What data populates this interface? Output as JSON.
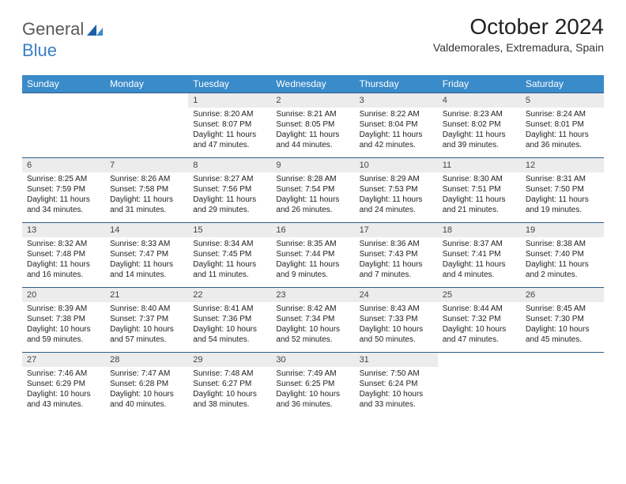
{
  "logo": {
    "word1": "General",
    "word2": "Blue"
  },
  "title": "October 2024",
  "subtitle": "Valdemorales, Extremadura, Spain",
  "colors": {
    "header_bg": "#3a8bc9",
    "header_text": "#ffffff",
    "row_divider": "#2e5c87",
    "daynum_bg": "#ececec",
    "logo_gray": "#5a5a5a",
    "logo_blue": "#3a7fc4",
    "text": "#222222",
    "page_bg": "#ffffff"
  },
  "weekdays": [
    "Sunday",
    "Monday",
    "Tuesday",
    "Wednesday",
    "Thursday",
    "Friday",
    "Saturday"
  ],
  "cells": [
    {
      "empty": true
    },
    {
      "empty": true
    },
    {
      "n": "1",
      "sr": "Sunrise: 8:20 AM",
      "ss": "Sunset: 8:07 PM",
      "d1": "Daylight: 11 hours",
      "d2": "and 47 minutes."
    },
    {
      "n": "2",
      "sr": "Sunrise: 8:21 AM",
      "ss": "Sunset: 8:05 PM",
      "d1": "Daylight: 11 hours",
      "d2": "and 44 minutes."
    },
    {
      "n": "3",
      "sr": "Sunrise: 8:22 AM",
      "ss": "Sunset: 8:04 PM",
      "d1": "Daylight: 11 hours",
      "d2": "and 42 minutes."
    },
    {
      "n": "4",
      "sr": "Sunrise: 8:23 AM",
      "ss": "Sunset: 8:02 PM",
      "d1": "Daylight: 11 hours",
      "d2": "and 39 minutes."
    },
    {
      "n": "5",
      "sr": "Sunrise: 8:24 AM",
      "ss": "Sunset: 8:01 PM",
      "d1": "Daylight: 11 hours",
      "d2": "and 36 minutes."
    },
    {
      "n": "6",
      "sr": "Sunrise: 8:25 AM",
      "ss": "Sunset: 7:59 PM",
      "d1": "Daylight: 11 hours",
      "d2": "and 34 minutes."
    },
    {
      "n": "7",
      "sr": "Sunrise: 8:26 AM",
      "ss": "Sunset: 7:58 PM",
      "d1": "Daylight: 11 hours",
      "d2": "and 31 minutes."
    },
    {
      "n": "8",
      "sr": "Sunrise: 8:27 AM",
      "ss": "Sunset: 7:56 PM",
      "d1": "Daylight: 11 hours",
      "d2": "and 29 minutes."
    },
    {
      "n": "9",
      "sr": "Sunrise: 8:28 AM",
      "ss": "Sunset: 7:54 PM",
      "d1": "Daylight: 11 hours",
      "d2": "and 26 minutes."
    },
    {
      "n": "10",
      "sr": "Sunrise: 8:29 AM",
      "ss": "Sunset: 7:53 PM",
      "d1": "Daylight: 11 hours",
      "d2": "and 24 minutes."
    },
    {
      "n": "11",
      "sr": "Sunrise: 8:30 AM",
      "ss": "Sunset: 7:51 PM",
      "d1": "Daylight: 11 hours",
      "d2": "and 21 minutes."
    },
    {
      "n": "12",
      "sr": "Sunrise: 8:31 AM",
      "ss": "Sunset: 7:50 PM",
      "d1": "Daylight: 11 hours",
      "d2": "and 19 minutes."
    },
    {
      "n": "13",
      "sr": "Sunrise: 8:32 AM",
      "ss": "Sunset: 7:48 PM",
      "d1": "Daylight: 11 hours",
      "d2": "and 16 minutes."
    },
    {
      "n": "14",
      "sr": "Sunrise: 8:33 AM",
      "ss": "Sunset: 7:47 PM",
      "d1": "Daylight: 11 hours",
      "d2": "and 14 minutes."
    },
    {
      "n": "15",
      "sr": "Sunrise: 8:34 AM",
      "ss": "Sunset: 7:45 PM",
      "d1": "Daylight: 11 hours",
      "d2": "and 11 minutes."
    },
    {
      "n": "16",
      "sr": "Sunrise: 8:35 AM",
      "ss": "Sunset: 7:44 PM",
      "d1": "Daylight: 11 hours",
      "d2": "and 9 minutes."
    },
    {
      "n": "17",
      "sr": "Sunrise: 8:36 AM",
      "ss": "Sunset: 7:43 PM",
      "d1": "Daylight: 11 hours",
      "d2": "and 7 minutes."
    },
    {
      "n": "18",
      "sr": "Sunrise: 8:37 AM",
      "ss": "Sunset: 7:41 PM",
      "d1": "Daylight: 11 hours",
      "d2": "and 4 minutes."
    },
    {
      "n": "19",
      "sr": "Sunrise: 8:38 AM",
      "ss": "Sunset: 7:40 PM",
      "d1": "Daylight: 11 hours",
      "d2": "and 2 minutes."
    },
    {
      "n": "20",
      "sr": "Sunrise: 8:39 AM",
      "ss": "Sunset: 7:38 PM",
      "d1": "Daylight: 10 hours",
      "d2": "and 59 minutes."
    },
    {
      "n": "21",
      "sr": "Sunrise: 8:40 AM",
      "ss": "Sunset: 7:37 PM",
      "d1": "Daylight: 10 hours",
      "d2": "and 57 minutes."
    },
    {
      "n": "22",
      "sr": "Sunrise: 8:41 AM",
      "ss": "Sunset: 7:36 PM",
      "d1": "Daylight: 10 hours",
      "d2": "and 54 minutes."
    },
    {
      "n": "23",
      "sr": "Sunrise: 8:42 AM",
      "ss": "Sunset: 7:34 PM",
      "d1": "Daylight: 10 hours",
      "d2": "and 52 minutes."
    },
    {
      "n": "24",
      "sr": "Sunrise: 8:43 AM",
      "ss": "Sunset: 7:33 PM",
      "d1": "Daylight: 10 hours",
      "d2": "and 50 minutes."
    },
    {
      "n": "25",
      "sr": "Sunrise: 8:44 AM",
      "ss": "Sunset: 7:32 PM",
      "d1": "Daylight: 10 hours",
      "d2": "and 47 minutes."
    },
    {
      "n": "26",
      "sr": "Sunrise: 8:45 AM",
      "ss": "Sunset: 7:30 PM",
      "d1": "Daylight: 10 hours",
      "d2": "and 45 minutes."
    },
    {
      "n": "27",
      "sr": "Sunrise: 7:46 AM",
      "ss": "Sunset: 6:29 PM",
      "d1": "Daylight: 10 hours",
      "d2": "and 43 minutes."
    },
    {
      "n": "28",
      "sr": "Sunrise: 7:47 AM",
      "ss": "Sunset: 6:28 PM",
      "d1": "Daylight: 10 hours",
      "d2": "and 40 minutes."
    },
    {
      "n": "29",
      "sr": "Sunrise: 7:48 AM",
      "ss": "Sunset: 6:27 PM",
      "d1": "Daylight: 10 hours",
      "d2": "and 38 minutes."
    },
    {
      "n": "30",
      "sr": "Sunrise: 7:49 AM",
      "ss": "Sunset: 6:25 PM",
      "d1": "Daylight: 10 hours",
      "d2": "and 36 minutes."
    },
    {
      "n": "31",
      "sr": "Sunrise: 7:50 AM",
      "ss": "Sunset: 6:24 PM",
      "d1": "Daylight: 10 hours",
      "d2": "and 33 minutes."
    },
    {
      "empty": true
    },
    {
      "empty": true
    }
  ]
}
